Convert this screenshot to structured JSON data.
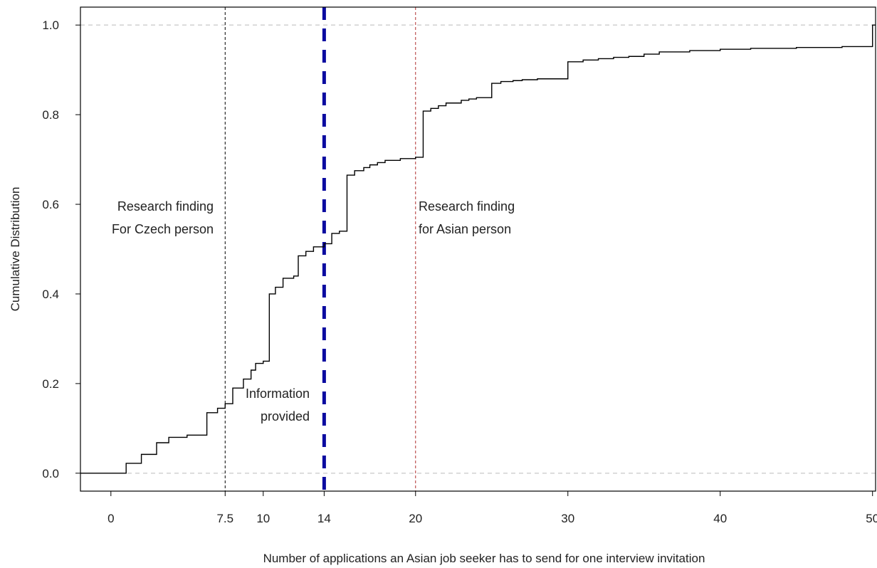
{
  "chart_data": {
    "type": "line",
    "subtype": "empirical-cdf-step",
    "title": "",
    "xlabel": "Number of applications an Asian job seeker has to send for one interview invitation",
    "ylabel": "Cumulative Distribution",
    "xlim": [
      -2,
      50.2
    ],
    "ylim": [
      -0.04,
      1.04
    ],
    "x_ticks": [
      0,
      7.5,
      10,
      14,
      20,
      30,
      40,
      50
    ],
    "x_tick_labels": [
      "0",
      "7.5",
      "10",
      "14",
      "20",
      "30",
      "40",
      "50"
    ],
    "y_ticks": [
      0.0,
      0.2,
      0.4,
      0.6,
      0.8,
      1.0
    ],
    "y_tick_labels": [
      "0.0",
      "0.2",
      "0.4",
      "0.6",
      "0.8",
      "1.0"
    ],
    "grid": false,
    "horizontal_reference_lines": [
      {
        "y": 0.0,
        "style": "dashed",
        "color": "#bbbbbb"
      },
      {
        "y": 1.0,
        "style": "dashed",
        "color": "#bbbbbb"
      }
    ],
    "vertical_lines": [
      {
        "x": 7.5,
        "style": "dashed",
        "color": "#000000"
      },
      {
        "x": 14,
        "style": "dashed",
        "color": "#0a0aa0",
        "emphasis": "thick"
      },
      {
        "x": 20,
        "style": "dashed",
        "color": "#b03030"
      }
    ],
    "annotations": [
      {
        "lines": [
          "Research finding",
          "For Czech person"
        ]
      },
      {
        "lines": [
          "Information",
          "provided"
        ]
      },
      {
        "lines": [
          "Research finding",
          "for Asian person"
        ]
      }
    ],
    "series": [
      {
        "color": "#000000",
        "x": [
          -2,
          1.0,
          2.0,
          3.0,
          3.8,
          5.0,
          6.3,
          7.0,
          7.5,
          8.0,
          8.7,
          9.2,
          9.5,
          10.0,
          10.4,
          10.8,
          11.3,
          12.0,
          12.3,
          12.8,
          13.3,
          14.0,
          14.5,
          15.0,
          15.5,
          16.0,
          16.6,
          17.0,
          17.5,
          18.0,
          19.0,
          20.0,
          20.5,
          21.0,
          21.5,
          22.0,
          23.0,
          23.5,
          24.0,
          25.0,
          25.6,
          26.4,
          27.0,
          28.0,
          30.0,
          31.0,
          32.0,
          33.0,
          34.0,
          35.0,
          36.0,
          38.0,
          40.0,
          42.0,
          45.0,
          48.0,
          50.0
        ],
        "y": [
          0.0,
          0.022,
          0.042,
          0.068,
          0.08,
          0.085,
          0.135,
          0.145,
          0.155,
          0.19,
          0.21,
          0.23,
          0.245,
          0.25,
          0.4,
          0.415,
          0.435,
          0.44,
          0.485,
          0.495,
          0.505,
          0.512,
          0.535,
          0.54,
          0.665,
          0.675,
          0.682,
          0.688,
          0.693,
          0.698,
          0.702,
          0.705,
          0.808,
          0.814,
          0.82,
          0.826,
          0.832,
          0.835,
          0.838,
          0.87,
          0.874,
          0.876,
          0.878,
          0.88,
          0.918,
          0.922,
          0.925,
          0.928,
          0.93,
          0.935,
          0.94,
          0.943,
          0.946,
          0.948,
          0.95,
          0.952,
          1.0
        ]
      }
    ]
  }
}
